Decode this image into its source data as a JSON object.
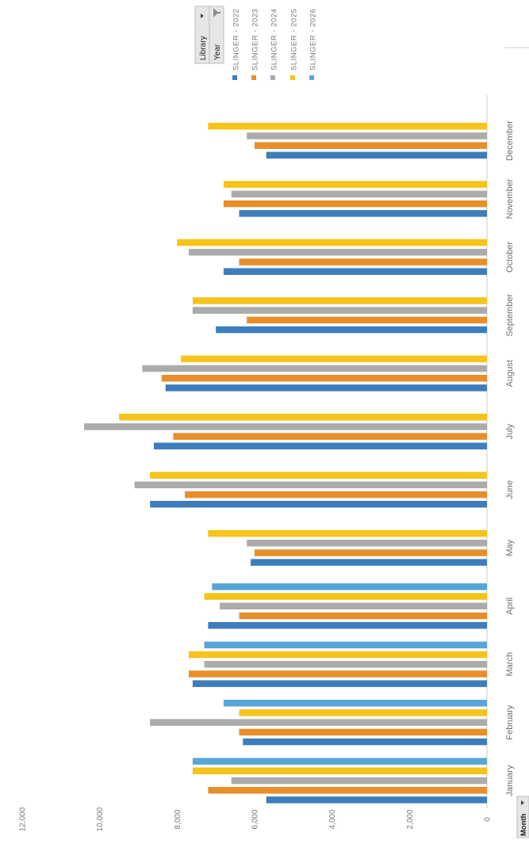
{
  "chart_data": {
    "type": "bar",
    "categories": [
      "January",
      "February",
      "March",
      "April",
      "May",
      "June",
      "July",
      "August",
      "September",
      "October",
      "November",
      "December"
    ],
    "series": [
      {
        "name": "SLINGER - 2022",
        "color": "#3D7DBC",
        "values": [
          5700,
          6300,
          7600,
          7200,
          6100,
          8700,
          8600,
          8300,
          7000,
          6800,
          6400,
          5700
        ]
      },
      {
        "name": "SLINGER - 2023",
        "color": "#E88E2A",
        "values": [
          7200,
          6400,
          7700,
          6400,
          6000,
          7800,
          8100,
          8400,
          6200,
          6400,
          6800,
          6000
        ]
      },
      {
        "name": "SLINGER - 2024",
        "color": "#ABABAB",
        "values": [
          6600,
          8700,
          7300,
          6900,
          6200,
          9100,
          10400,
          8900,
          7600,
          7700,
          6600,
          6200
        ]
      },
      {
        "name": "SLINGER - 2025",
        "color": "#F5C31A",
        "values": [
          7600,
          6400,
          7700,
          7300,
          7200,
          8700,
          9500,
          7900,
          7600,
          8000,
          6800,
          7200
        ]
      },
      {
        "name": "SLINGER - 2026",
        "color": "#58A6D9",
        "values": [
          7600,
          6800,
          7300,
          7100,
          null,
          null,
          null,
          null,
          null,
          null,
          null,
          null
        ]
      }
    ],
    "y_ticks": [
      "0",
      "2,000",
      "4,000",
      "6,000",
      "8,000",
      "10,000",
      "12,000"
    ],
    "ylim": [
      0,
      12000
    ],
    "grid": false,
    "legend": "top-right"
  },
  "filters": {
    "library": "Library",
    "year": "Year",
    "month": "Month"
  },
  "icons": {
    "filter": "funnel-icon",
    "dropdown": "dropdown-arrow-icon"
  }
}
